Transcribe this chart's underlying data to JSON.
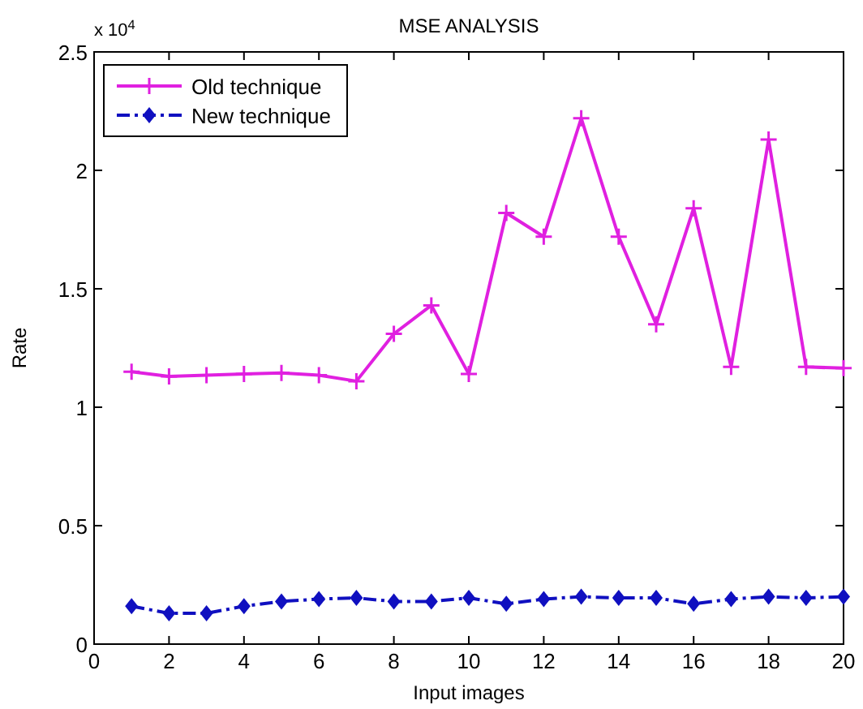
{
  "chart_data": {
    "type": "line",
    "title": "MSE ANALYSIS",
    "xlabel": "Input images",
    "ylabel": "Rate",
    "annotations": [
      "x 10$^{4}$"
    ],
    "x": [
      1,
      2,
      3,
      4,
      5,
      6,
      7,
      8,
      9,
      10,
      11,
      12,
      13,
      14,
      15,
      16,
      17,
      18,
      19,
      20
    ],
    "series": [
      {
        "name": "Old technique",
        "color": "#e020e0",
        "marker": "cross",
        "line_style": "solid",
        "values": [
          1.15,
          1.13,
          1.135,
          1.14,
          1.145,
          1.135,
          1.11,
          1.31,
          1.43,
          1.14,
          1.82,
          1.72,
          2.22,
          1.72,
          1.35,
          1.84,
          1.17,
          2.13,
          1.17,
          1.165
        ]
      },
      {
        "name": "New technique",
        "color": "#1010c0",
        "marker": "diamond",
        "line_style": "dashed",
        "values": [
          0.16,
          0.13,
          0.13,
          0.16,
          0.18,
          0.19,
          0.195,
          0.18,
          0.18,
          0.195,
          0.17,
          0.19,
          0.2,
          0.195,
          0.195,
          0.17,
          0.19,
          0.2,
          0.195,
          0.2
        ]
      }
    ],
    "xlim": [
      0,
      20
    ],
    "xticks": [
      0,
      2,
      4,
      6,
      8,
      10,
      12,
      14,
      16,
      18,
      20
    ],
    "ylim": [
      0,
      2.5
    ],
    "yticks": [
      0,
      0.5,
      1,
      1.5,
      2,
      2.5
    ],
    "grid": false,
    "legend": "top left"
  }
}
